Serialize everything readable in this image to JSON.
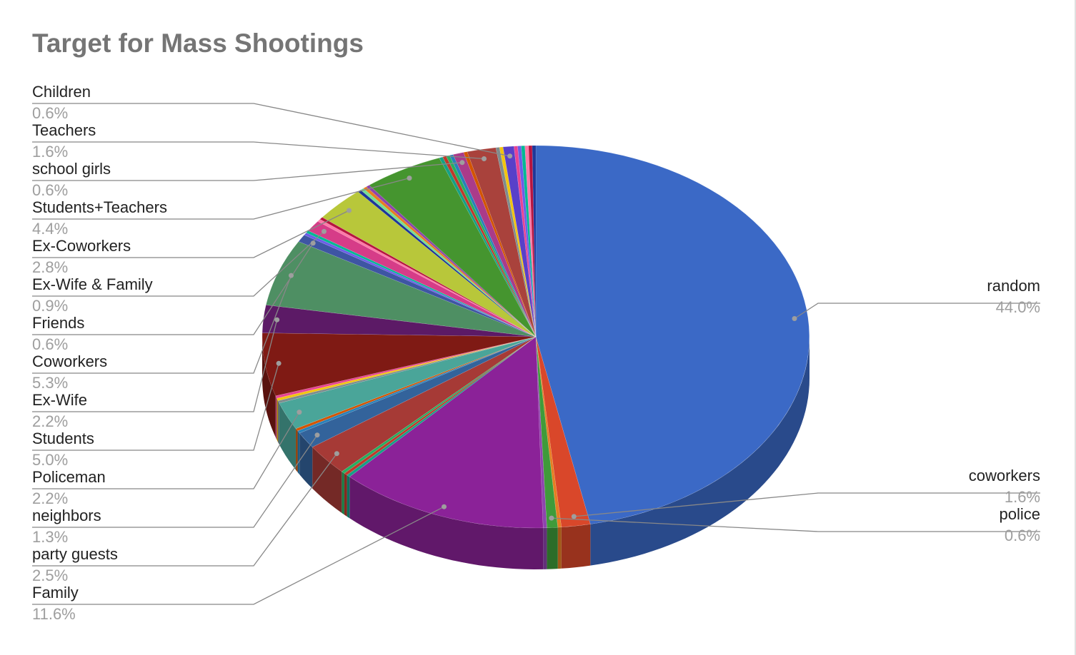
{
  "chart_data": {
    "type": "pie",
    "title": "Target for Mass Shootings",
    "style": "3d",
    "labeled_slices": [
      {
        "label": "random",
        "value": 44.0,
        "color": "#3b69c6"
      },
      {
        "label": "coworkers",
        "value": 1.6,
        "color": "#d9472a"
      },
      {
        "label": "police",
        "value": 0.6,
        "color": "#3f9b3a"
      },
      {
        "label": "Family",
        "value": 11.6,
        "color": "#8b2298"
      },
      {
        "label": "party guests",
        "value": 2.5,
        "color": "#a63a36"
      },
      {
        "label": "neighbors",
        "value": 1.3,
        "color": "#33639b"
      },
      {
        "label": "Policeman",
        "value": 2.2,
        "color": "#4aa599"
      },
      {
        "label": "Students",
        "value": 5.0,
        "color": "#7f1a14"
      },
      {
        "label": "Ex-Wife",
        "value": 2.2,
        "color": "#5c1a66"
      },
      {
        "label": "Coworkers",
        "value": 5.3,
        "color": "#4e8f63"
      },
      {
        "label": "Friends",
        "value": 0.6,
        "color": "#3e55a3"
      },
      {
        "label": "Ex-Wife & Family",
        "value": 0.9,
        "color": "#d63c88"
      },
      {
        "label": "Ex-Coworkers",
        "value": 2.8,
        "color": "#b8c73a"
      },
      {
        "label": "Students+Teachers",
        "value": 4.4,
        "color": "#45952f"
      },
      {
        "label": "school girls",
        "value": 0.6,
        "color": "#aa3b8a"
      },
      {
        "label": "Teachers",
        "value": 1.6,
        "color": "#a9423c"
      },
      {
        "label": "Children",
        "value": 0.6,
        "color": "#5840c9"
      }
    ]
  }
}
